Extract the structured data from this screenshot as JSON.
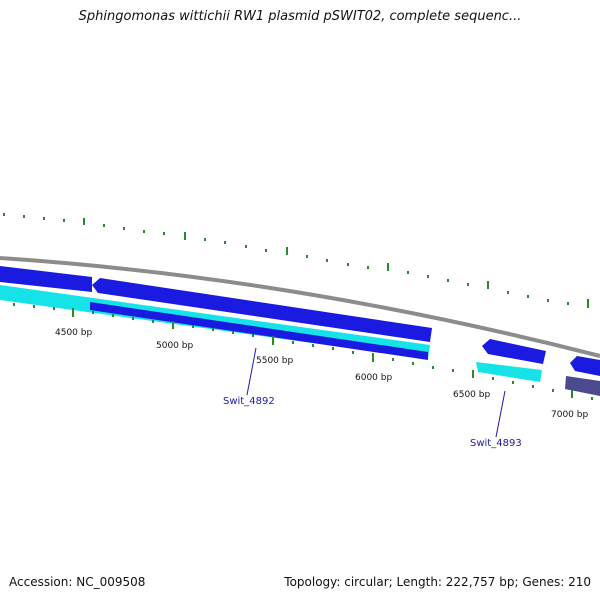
{
  "title": "Sphingomonas wittichii RW1 plasmid pSWIT02, complete sequenc...",
  "footer": {
    "accession": "Accession: NC_009508",
    "summary": "Topology: circular; Length: 222,757 bp; Genes: 210"
  },
  "ruler_labels": [
    "4500 bp",
    "5000 bp",
    "5500 bp",
    "6000 bp",
    "6500 bp",
    "7000 bp"
  ],
  "gene_labels": [
    "Swit_4892",
    "Swit_4893"
  ],
  "colors": {
    "backbone": "#8c8c8c",
    "forward_gene": "#1a1ae0",
    "reverse_gene": "#16e3e8",
    "other_gene": "#4a4a8c",
    "tick": "#2a8a2a",
    "label": "#1a1aa6"
  }
}
